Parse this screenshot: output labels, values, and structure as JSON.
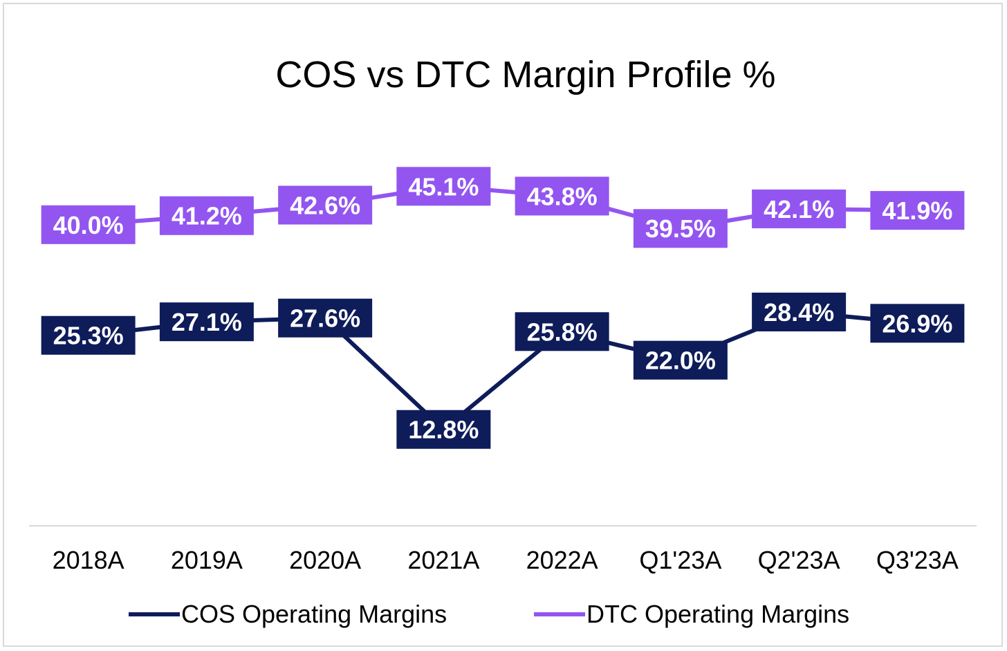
{
  "chart_data": {
    "type": "line",
    "title": "COS vs DTC Margin Profile %",
    "xlabel": "",
    "ylabel": "",
    "categories": [
      "2018A",
      "2019A",
      "2020A",
      "2021A",
      "2022A",
      "Q1'23A",
      "Q2'23A",
      "Q3'23A"
    ],
    "series": [
      {
        "name": "COS Operating Margins",
        "color": "#0e1c5a",
        "values": [
          25.3,
          27.1,
          27.6,
          12.8,
          25.8,
          22.0,
          28.4,
          26.9
        ],
        "labels": [
          "25.3%",
          "27.1%",
          "27.6%",
          "12.8%",
          "25.8%",
          "22.0%",
          "28.4%",
          "26.9%"
        ]
      },
      {
        "name": "DTC Operating Margins",
        "color": "#9355f0",
        "values": [
          40.0,
          41.2,
          42.6,
          45.1,
          43.8,
          39.5,
          42.1,
          41.9
        ],
        "labels": [
          "40.0%",
          "41.2%",
          "42.6%",
          "45.1%",
          "43.8%",
          "39.5%",
          "42.1%",
          "41.9%"
        ]
      }
    ],
    "ylim": [
      0,
      50
    ],
    "grid": false,
    "legend_position": "bottom"
  }
}
